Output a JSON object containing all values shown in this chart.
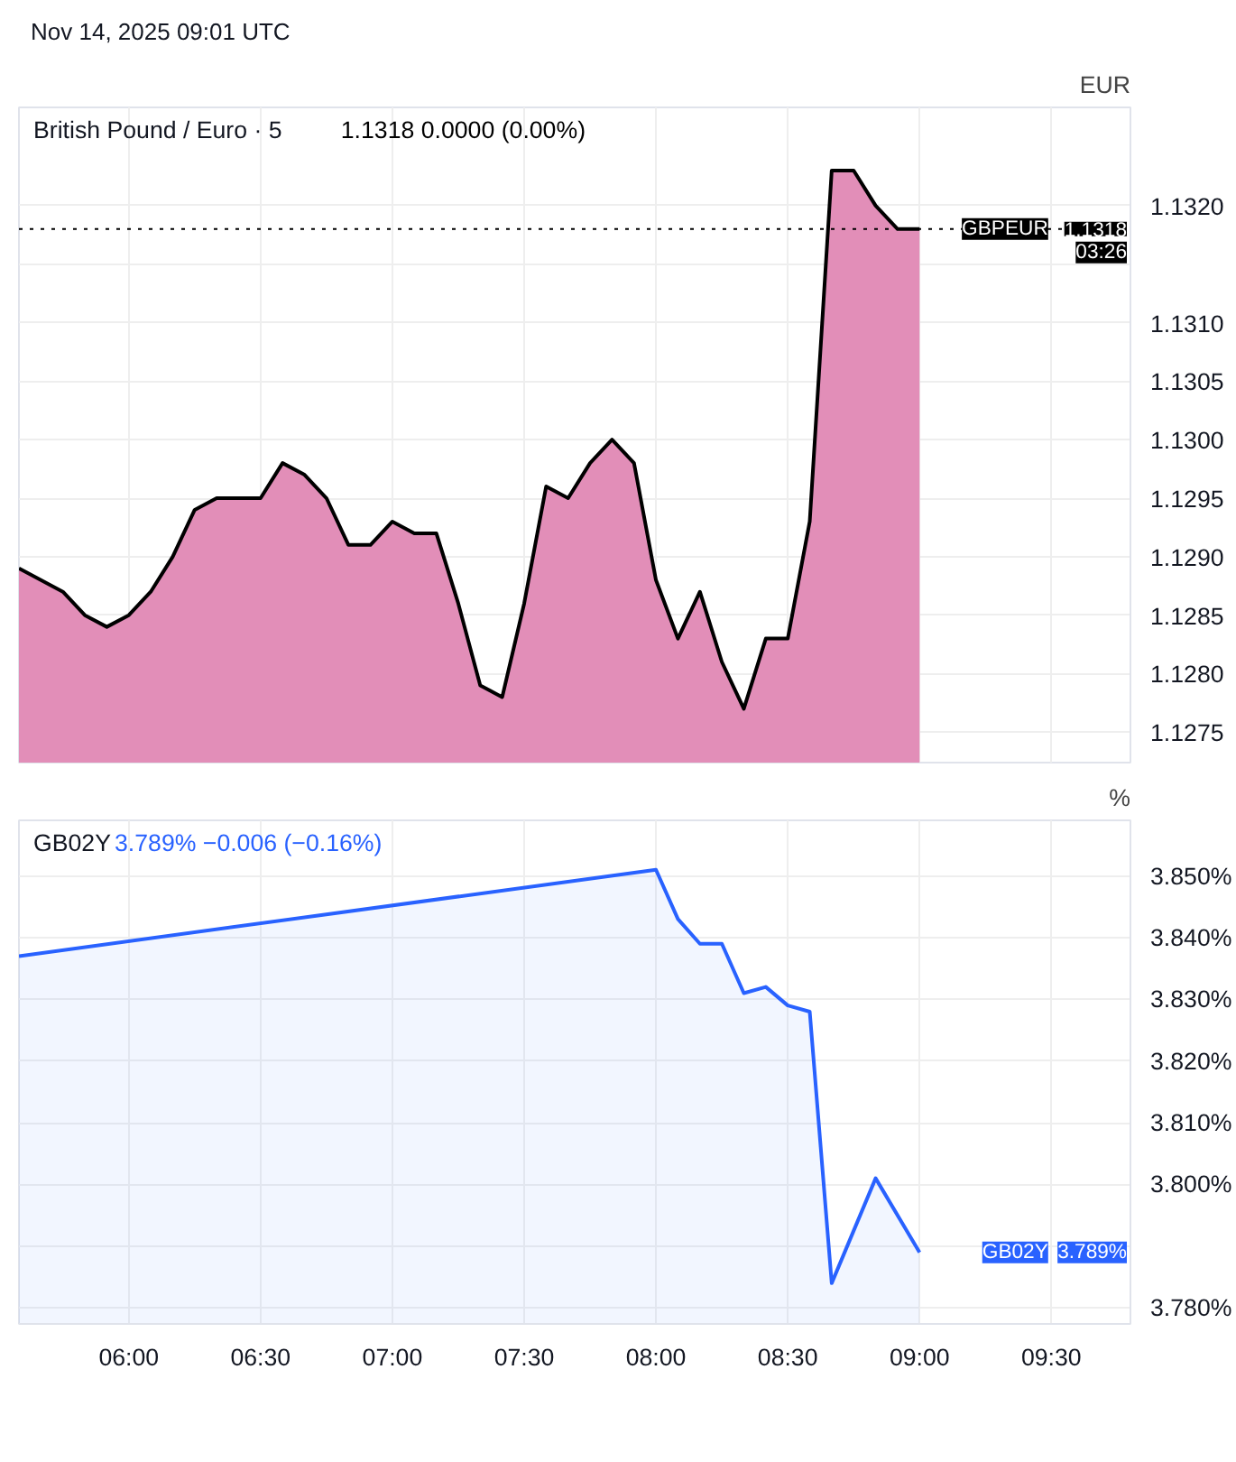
{
  "chart_data": [
    {
      "type": "area",
      "title": "British Pound / Euro · 5",
      "subtitle": "1.1318  0.0000 (0.00%)",
      "ylabel": "EUR",
      "annotations": [
        "Nov 14, 2025 09:01 UTC",
        {
          "text": "1.1318",
          "y": 1.1318
        },
        {
          "text": "03:26",
          "y": 1.1318
        }
      ],
      "x": [
        5.5833,
        5.6667,
        5.75,
        5.8333,
        5.9167,
        6,
        6.0833,
        6.1667,
        6.25,
        6.3333,
        6.4167,
        6.5,
        6.5833,
        6.6667,
        6.75,
        6.8333,
        6.9167,
        7,
        7.0833,
        7.1667,
        7.25,
        7.3333,
        7.4167,
        7.5,
        7.5833,
        7.6667,
        7.75,
        7.8333,
        7.9167,
        8,
        8.0833,
        8.1667,
        8.25,
        8.3333,
        8.4167,
        8.5,
        8.5833,
        8.6667,
        8.75,
        8.8333,
        8.9167,
        9
      ],
      "series": [
        {
          "color": "#000000",
          "values": [
            1.1289,
            1.1288,
            1.1287,
            1.1285,
            1.1284,
            1.1285,
            1.1287,
            1.129,
            1.1294,
            1.1295,
            1.1295,
            1.1295,
            1.1298,
            1.1297,
            1.1295,
            1.1291,
            1.1291,
            1.1293,
            1.1292,
            1.1292,
            1.1286,
            1.1279,
            1.1278,
            1.1286,
            1.1296,
            1.1295,
            1.1298,
            1.13,
            1.1298,
            1.1288,
            1.1283,
            1.1287,
            1.1281,
            1.1277,
            1.1283,
            1.1283,
            1.1293,
            1.1323,
            1.1323,
            1.132,
            1.1318,
            1.1318
          ]
        }
      ],
      "xlim": [
        5.5833,
        9.8
      ],
      "ylim": [
        1.12724,
        1.13284
      ],
      "xticks": [
        {
          "value": 6,
          "label": null
        },
        {
          "value": 6.5,
          "label": null
        },
        {
          "value": 7,
          "label": null
        },
        {
          "value": 7.5,
          "label": null
        },
        {
          "value": 8,
          "label": null
        },
        {
          "value": 8.5,
          "label": null
        },
        {
          "value": 9,
          "label": null
        },
        {
          "value": 9.5,
          "label": null
        }
      ],
      "yticks": [
        {
          "value": 1.1275,
          "label": "1.1275"
        },
        {
          "value": 1.128,
          "label": "1.1280"
        },
        {
          "value": 1.1285,
          "label": "1.1285"
        },
        {
          "value": 1.129,
          "label": "1.1290"
        },
        {
          "value": 1.1295,
          "label": "1.1295"
        },
        {
          "value": 1.13,
          "label": "1.1300"
        },
        {
          "value": 1.1305,
          "label": "1.1305"
        },
        {
          "value": 1.131,
          "label": "1.1310"
        },
        {
          "value": 1.1315,
          "label": null
        },
        {
          "value": 1.132,
          "label": "1.1320"
        }
      ],
      "ref_lines": [
        {
          "axis": "y",
          "value": 1.1318,
          "label": "GBPEUR",
          "color": "#000000",
          "line_style": "dotted"
        }
      ],
      "grid": true,
      "tick_labels": "y"
    },
    {
      "type": "area",
      "title": "GB02Y",
      "subtitle": "3.789%  −0.006 (−0.16%)",
      "ylabel": "%",
      "annotations": [
        {
          "text": "GB02Y",
          "y": 3.789
        },
        {
          "text": "3.789%",
          "y": 3.789
        }
      ],
      "x": [
        5.5833,
        8,
        8.0833,
        8.1667,
        8.25,
        8.3333,
        8.4167,
        8.5,
        8.5833,
        8.6667,
        8.8333,
        9
      ],
      "series": [
        {
          "color": "#2962ff",
          "values": [
            3.837,
            3.851,
            3.843,
            3.839,
            3.839,
            3.831,
            3.832,
            3.829,
            3.828,
            3.784,
            3.801,
            3.789
          ]
        }
      ],
      "xlim": [
        5.5833,
        9.8
      ],
      "ylim": [
        3.7774,
        3.859
      ],
      "xticks": [
        {
          "value": 6,
          "label": "06:00"
        },
        {
          "value": 6.5,
          "label": "06:30"
        },
        {
          "value": 7,
          "label": "07:00"
        },
        {
          "value": 7.5,
          "label": "07:30"
        },
        {
          "value": 8,
          "label": "08:00"
        },
        {
          "value": 8.5,
          "label": "08:30"
        },
        {
          "value": 9,
          "label": "09:00"
        },
        {
          "value": 9.5,
          "label": "09:30"
        }
      ],
      "yticks": [
        {
          "value": 3.78,
          "label": "3.780%"
        },
        {
          "value": 3.79,
          "label": null
        },
        {
          "value": 3.8,
          "label": "3.800%"
        },
        {
          "value": 3.81,
          "label": "3.810%"
        },
        {
          "value": 3.82,
          "label": "3.820%"
        },
        {
          "value": 3.83,
          "label": "3.830%"
        },
        {
          "value": 3.84,
          "label": "3.840%"
        },
        {
          "value": 3.85,
          "label": "3.850%"
        }
      ],
      "grid": true
    }
  ]
}
